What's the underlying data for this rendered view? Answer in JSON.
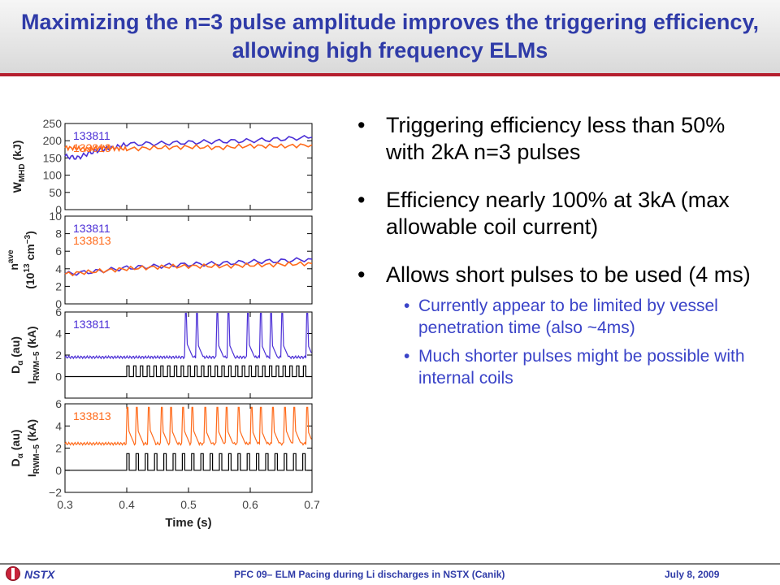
{
  "slide": {
    "title": "Maximizing the n=3 pulse amplitude improves the triggering efficiency, allowing high frequency ELMs",
    "bullets": [
      {
        "text": "Triggering efficiency less than 50% with 2kA n=3 pulses"
      },
      {
        "text": "Efficiency nearly 100% at 3kA (max allowable coil current)"
      },
      {
        "text": "Allows short pulses to be used (4 ms)"
      }
    ],
    "sub_bullets": [
      {
        "text": "Currently appear to be limited by vessel penetration time (also ~4ms)"
      },
      {
        "text": "Much shorter pulses might be possible with internal coils"
      }
    ],
    "bullet_glyph": "•",
    "footer": {
      "logo_text": "NSTX",
      "center": "PFC 09– ELM Pacing during Li discharges in NSTX (Canik)",
      "date": "July 8, 2009"
    },
    "colors": {
      "title": "#2f3ba8",
      "accent_line": "#b51f2e",
      "sub_bullet": "#3a43c8"
    }
  },
  "chart_data": {
    "type": "line",
    "xlabel": "Time (s)",
    "xlim": [
      0.3,
      0.7
    ],
    "xticks": [
      0.3,
      0.4,
      0.5,
      0.6,
      0.7
    ],
    "colors": {
      "133811": "#4b2fd6",
      "133813": "#ff6a1a",
      "coil": "#000000"
    },
    "panels": [
      {
        "ylabel": "W_MHD (kJ)",
        "ylim": [
          0,
          250
        ],
        "yticks": [
          0,
          50,
          100,
          150,
          200,
          250
        ],
        "series": [
          {
            "name": "133811",
            "x": [
              0.3,
              0.32,
              0.34,
              0.36,
              0.38,
              0.4,
              0.45,
              0.5,
              0.55,
              0.6,
              0.65,
              0.7
            ],
            "y": [
              155,
              150,
              165,
              175,
              180,
              190,
              192,
              195,
              198,
              200,
              205,
              210
            ]
          },
          {
            "name": "133813",
            "x": [
              0.3,
              0.32,
              0.34,
              0.36,
              0.38,
              0.4,
              0.45,
              0.5,
              0.55,
              0.6,
              0.65,
              0.7
            ],
            "y": [
              180,
              178,
              176,
              180,
              178,
              176,
              180,
              182,
              180,
              185,
              184,
              188
            ]
          }
        ]
      },
      {
        "ylabel": "n_e^ave (10^13 cm^-3)",
        "ylim": [
          0,
          10
        ],
        "yticks": [
          0,
          2,
          4,
          6,
          8,
          10
        ],
        "series": [
          {
            "name": "133811",
            "x": [
              0.3,
              0.35,
              0.4,
              0.45,
              0.5,
              0.55,
              0.6,
              0.65,
              0.7
            ],
            "y": [
              3.4,
              3.7,
              4.1,
              4.3,
              4.5,
              4.6,
              4.8,
              4.9,
              5.1
            ]
          },
          {
            "name": "133813",
            "x": [
              0.3,
              0.35,
              0.4,
              0.45,
              0.5,
              0.55,
              0.6,
              0.65,
              0.7
            ],
            "y": [
              3.4,
              3.7,
              4.0,
              4.2,
              4.3,
              4.3,
              4.4,
              4.5,
              4.6
            ]
          }
        ]
      },
      {
        "ylabel": "D_α (au), I_RWM-5 (kA)",
        "ylim": [
          -2,
          6
        ],
        "yticks": [
          0,
          2,
          4,
          6
        ],
        "label": "133811",
        "baseline": 1.8,
        "elm_times": [
          0.495,
          0.512,
          0.545,
          0.563,
          0.595,
          0.615,
          0.632,
          0.65,
          0.69
        ],
        "pulse_times": [
          0.4,
          0.411,
          0.422,
          0.433,
          0.444,
          0.455,
          0.466,
          0.477,
          0.488,
          0.499,
          0.51,
          0.521,
          0.532,
          0.543,
          0.554,
          0.565,
          0.576,
          0.587,
          0.598,
          0.609,
          0.62,
          0.631,
          0.642,
          0.653,
          0.664,
          0.675,
          0.686
        ],
        "pulse_height": 1.0,
        "pulse_width": 0.004
      },
      {
        "ylabel": "D_α (au), I_RWM-5 (kA)",
        "ylim": [
          -2,
          6
        ],
        "yticks": [
          -2,
          0,
          2,
          4,
          6
        ],
        "label": "133813",
        "baseline": 2.4,
        "elm_times": [
          0.4,
          0.415,
          0.435,
          0.455,
          0.47,
          0.49,
          0.505,
          0.525,
          0.545,
          0.56,
          0.58,
          0.6,
          0.615,
          0.635,
          0.655,
          0.67,
          0.69
        ],
        "pulse_times": [
          0.4,
          0.415,
          0.43,
          0.445,
          0.46,
          0.475,
          0.49,
          0.505,
          0.52,
          0.535,
          0.55,
          0.565,
          0.58,
          0.595,
          0.61,
          0.625,
          0.64,
          0.655,
          0.67,
          0.685
        ],
        "pulse_height": 1.5,
        "pulse_width": 0.004
      }
    ],
    "series_names": [
      "133811",
      "133813"
    ],
    "panel_series_labels": [
      [
        "133811",
        "133813"
      ],
      [
        "133811",
        "133813"
      ],
      [
        "133811"
      ],
      [
        "133813"
      ]
    ],
    "ylabels_text": {
      "p1": [
        "W",
        "MHD",
        " (kJ)"
      ],
      "p2a": [
        "n",
        "ave"
      ],
      "p2b": [
        "(10",
        "13",
        " cm",
        "−3",
        ")"
      ],
      "p3": [
        "D",
        "α",
        " (au)"
      ],
      "p3b": [
        "I",
        "RWM−5",
        " (kA)"
      ],
      "p4": [
        "D",
        "α",
        " (au)"
      ],
      "p4b": [
        "I",
        "RWM−5",
        " (kA)"
      ]
    }
  }
}
